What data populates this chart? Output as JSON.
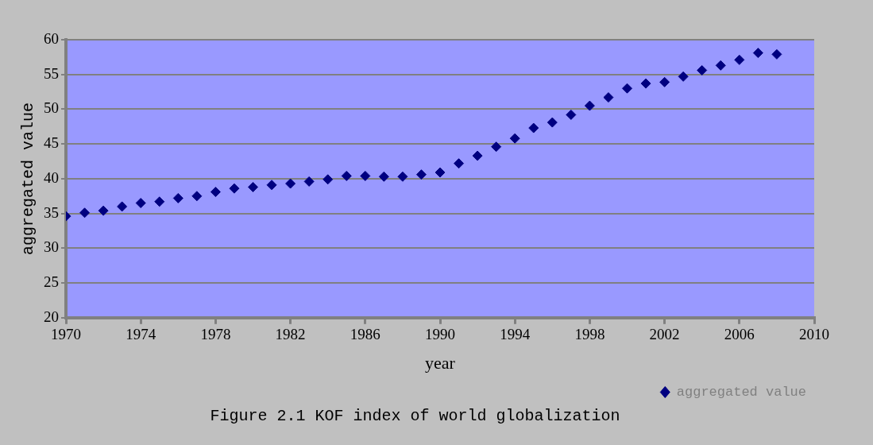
{
  "chart_data": {
    "type": "scatter",
    "title": "Figure 2.1 KOF index of world globalization",
    "xlabel": "year",
    "ylabel": "aggregated value",
    "x": [
      1970,
      1971,
      1972,
      1973,
      1974,
      1975,
      1976,
      1977,
      1978,
      1979,
      1980,
      1981,
      1982,
      1983,
      1984,
      1985,
      1986,
      1987,
      1988,
      1989,
      1990,
      1991,
      1992,
      1993,
      1994,
      1995,
      1996,
      1997,
      1998,
      1999,
      2000,
      2001,
      2002,
      2003,
      2004,
      2005,
      2006,
      2007,
      2008
    ],
    "series": [
      {
        "name": "aggregated value",
        "color": "#000080",
        "values": [
          34.6,
          35.1,
          35.4,
          36.0,
          36.5,
          36.7,
          37.2,
          37.5,
          38.1,
          38.6,
          38.8,
          39.1,
          39.3,
          39.6,
          39.9,
          40.4,
          40.4,
          40.3,
          40.3,
          40.6,
          40.9,
          42.2,
          43.3,
          44.6,
          45.8,
          47.3,
          48.1,
          49.2,
          50.5,
          51.7,
          53.0,
          53.7,
          53.9,
          54.7,
          55.6,
          56.3,
          57.1,
          58.1,
          57.9
        ]
      }
    ],
    "xlim": [
      1970,
      2010
    ],
    "xticks": [
      1970,
      1974,
      1978,
      1982,
      1986,
      1990,
      1994,
      1998,
      2002,
      2006,
      2010
    ],
    "ylim": [
      20,
      60
    ],
    "yticks": [
      20,
      25,
      30,
      35,
      40,
      45,
      50,
      55,
      60
    ],
    "grid": "y",
    "legend": "bottom right",
    "marker": "diamond"
  }
}
